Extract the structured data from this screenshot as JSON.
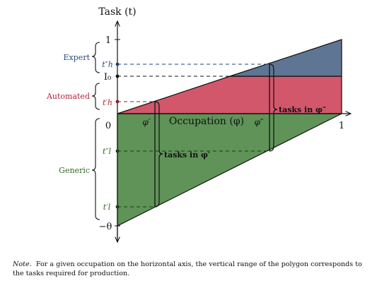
{
  "axes": {
    "y_title": "Task (t)",
    "x_title": "Occupation (φ)",
    "y_ticks": {
      "one": "1",
      "I0": "I₀",
      "zero": "0",
      "neg_theta": "−θ"
    },
    "x_ticks": {
      "one": "1",
      "phi1": "φ′",
      "phi2": "φ″"
    }
  },
  "thresholds": {
    "th2": "t″h",
    "th1": "t′h",
    "tl2": "t″l",
    "tl1": "t′l"
  },
  "groups": {
    "expert": "Expert",
    "automated": "Automated",
    "generic": "Generic"
  },
  "annotations": {
    "tasks_phi2": "tasks in φ″",
    "tasks_phi1": "tasks in φ′"
  },
  "note": {
    "label": "Note.",
    "text": "For a given occupation on the horizontal axis, the vertical range of the polygon corresponds to the tasks required for production."
  },
  "colors": {
    "expert": "#5f7594",
    "automated": "#d2576b",
    "generic": "#5f9358",
    "expert_text": "#2d4a78",
    "automated_text": "#b0243c",
    "generic_text": "#2e6a1f",
    "dashed": "#1f3f73"
  }
}
